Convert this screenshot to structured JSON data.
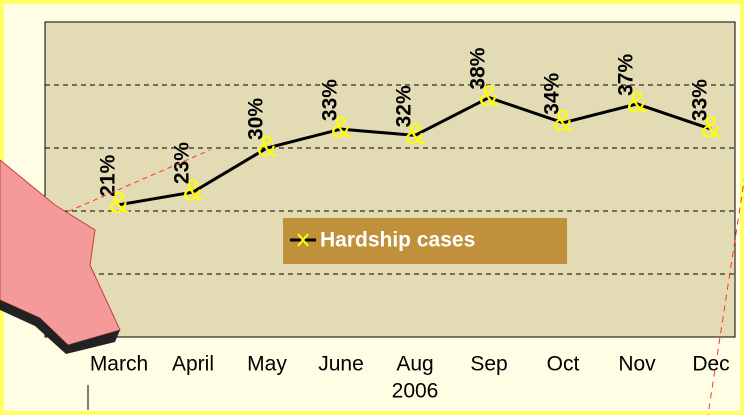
{
  "chart_data": {
    "type": "line",
    "x_label": "2006",
    "categories": [
      "March",
      "April",
      "May",
      "June",
      "Aug",
      "Sep",
      "Oct",
      "Nov",
      "Dec"
    ],
    "series": [
      {
        "name": "Hardship cases",
        "color": "#000000",
        "marker_color": "#ffff00",
        "values": [
          21,
          23,
          30,
          33,
          32,
          38,
          34,
          37,
          33
        ],
        "value_labels": [
          "21%",
          "23%",
          "30%",
          "33%",
          "32%",
          "38%",
          "34%",
          "37%",
          "33%"
        ]
      }
    ],
    "ylim": [
      0,
      50
    ],
    "yticks": [
      10,
      20,
      30,
      40
    ],
    "ytick_labels": false,
    "grid": true,
    "marker": "&",
    "legend": "center"
  }
}
